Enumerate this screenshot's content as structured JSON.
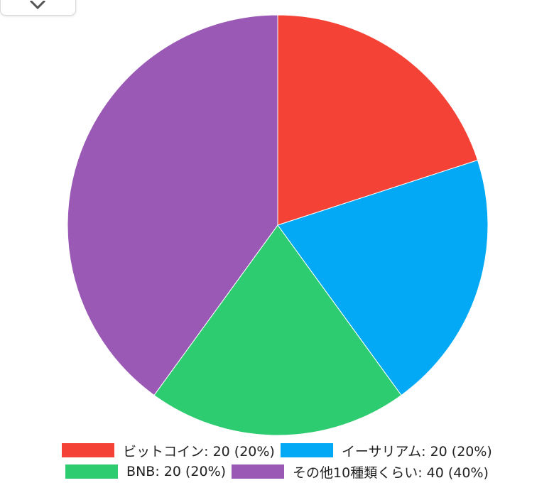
{
  "top_button": {
    "icon": "close-icon"
  },
  "chart_data": {
    "type": "pie",
    "categories": [
      "ビットコイン",
      "イーサリアム",
      "BNB",
      "その他10種類くらい"
    ],
    "values": [
      20,
      20,
      20,
      40
    ],
    "colors": [
      "#f44336",
      "#03a9f4",
      "#2ecc71",
      "#9b59b6"
    ],
    "legend": [
      {
        "label": "ビットコイン: 20 (20%)",
        "color": "#f44336"
      },
      {
        "label": "イーサリアム: 20 (20%)",
        "color": "#03a9f4"
      },
      {
        "label": "BNB: 20 (20%)",
        "color": "#2ecc71"
      },
      {
        "label": "その他10種類くらい: 40 (40%)",
        "color": "#9b59b6"
      }
    ],
    "legend_position": "bottom"
  }
}
